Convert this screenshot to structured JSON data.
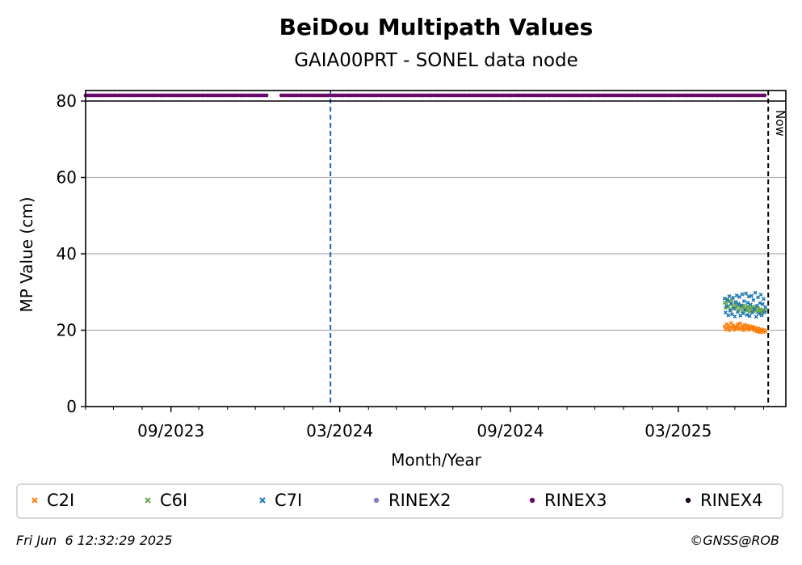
{
  "chart_data": {
    "type": "scatter",
    "title": "BeiDou Multipath Values",
    "subtitle": "GAIA00PRT - SONEL data node",
    "xlabel": "Month/Year",
    "ylabel": "MP Value (cm)",
    "xlim": [
      "2023-06-01",
      "2025-06-25"
    ],
    "ylim": [
      0,
      80
    ],
    "yticks": [
      0,
      20,
      40,
      60,
      80
    ],
    "xticks": [
      {
        "date": "2023-09-01",
        "label": "09/2023"
      },
      {
        "date": "2024-03-01",
        "label": "03/2024"
      },
      {
        "date": "2024-09-01",
        "label": "09/2024"
      },
      {
        "date": "2025-03-01",
        "label": "03/2025"
      }
    ],
    "grid": "horizontal",
    "now_line": {
      "date": "2025-06-06",
      "label": "Now"
    },
    "event_line": {
      "date": "2024-02-20",
      "color": "#1f5fbf"
    },
    "legend_position": "bottom",
    "series": [
      {
        "name": "C2I",
        "color": "#ff7f0e",
        "marker": "x",
        "points": [
          [
            "2025-04-20",
            21.0
          ],
          [
            "2025-04-21",
            20.2
          ],
          [
            "2025-04-22",
            21.6
          ],
          [
            "2025-04-23",
            20.5
          ],
          [
            "2025-04-24",
            21.2
          ],
          [
            "2025-04-25",
            20.0
          ],
          [
            "2025-04-26",
            20.8
          ],
          [
            "2025-04-27",
            21.9
          ],
          [
            "2025-04-28",
            20.6
          ],
          [
            "2025-04-29",
            21.3
          ],
          [
            "2025-04-30",
            20.1
          ],
          [
            "2025-05-01",
            21.0
          ],
          [
            "2025-05-02",
            20.4
          ],
          [
            "2025-05-03",
            20.9
          ],
          [
            "2025-05-04",
            21.5
          ],
          [
            "2025-05-05",
            20.3
          ],
          [
            "2025-05-06",
            20.7
          ],
          [
            "2025-05-07",
            21.8
          ],
          [
            "2025-05-08",
            20.2
          ],
          [
            "2025-05-09",
            21.1
          ],
          [
            "2025-05-10",
            20.6
          ],
          [
            "2025-05-11",
            20.0
          ],
          [
            "2025-05-12",
            21.4
          ],
          [
            "2025-05-13",
            20.5
          ],
          [
            "2025-05-14",
            20.8
          ],
          [
            "2025-05-15",
            21.2
          ],
          [
            "2025-05-16",
            20.1
          ],
          [
            "2025-05-17",
            20.6
          ],
          [
            "2025-05-18",
            20.9
          ],
          [
            "2025-05-19",
            20.3
          ],
          [
            "2025-05-20",
            21.0
          ],
          [
            "2025-05-21",
            20.4
          ],
          [
            "2025-05-22",
            19.9
          ],
          [
            "2025-05-23",
            20.7
          ],
          [
            "2025-05-24",
            20.2
          ],
          [
            "2025-05-25",
            19.6
          ],
          [
            "2025-05-26",
            20.5
          ],
          [
            "2025-05-27",
            20.0
          ],
          [
            "2025-05-28",
            19.4
          ],
          [
            "2025-05-29",
            20.3
          ],
          [
            "2025-05-30",
            19.8
          ],
          [
            "2025-05-31",
            20.1
          ],
          [
            "2025-06-01",
            19.5
          ],
          [
            "2025-06-02",
            20.0
          ],
          [
            "2025-06-03",
            19.7
          ]
        ]
      },
      {
        "name": "C6I",
        "color": "#6aa84f",
        "marker": "x",
        "points": [
          [
            "2025-04-20",
            27.2
          ],
          [
            "2025-04-21",
            25.8
          ],
          [
            "2025-04-22",
            26.9
          ],
          [
            "2025-04-23",
            28.1
          ],
          [
            "2025-04-24",
            26.3
          ],
          [
            "2025-04-25",
            27.6
          ],
          [
            "2025-04-26",
            25.5
          ],
          [
            "2025-04-27",
            26.8
          ],
          [
            "2025-04-28",
            27.9
          ],
          [
            "2025-04-29",
            26.1
          ],
          [
            "2025-04-30",
            25.6
          ],
          [
            "2025-05-01",
            26.7
          ],
          [
            "2025-05-02",
            27.3
          ],
          [
            "2025-05-03",
            25.9
          ],
          [
            "2025-05-04",
            26.4
          ],
          [
            "2025-05-05",
            25.2
          ],
          [
            "2025-05-06",
            26.6
          ],
          [
            "2025-05-07",
            25.7
          ],
          [
            "2025-05-08",
            26.2
          ],
          [
            "2025-05-09",
            24.9
          ],
          [
            "2025-05-10",
            25.8
          ],
          [
            "2025-05-11",
            26.5
          ],
          [
            "2025-05-12",
            25.3
          ],
          [
            "2025-05-13",
            26.0
          ],
          [
            "2025-05-14",
            25.1
          ],
          [
            "2025-05-15",
            26.3
          ],
          [
            "2025-05-16",
            25.6
          ],
          [
            "2025-05-17",
            24.8
          ],
          [
            "2025-05-18",
            25.9
          ],
          [
            "2025-05-19",
            25.4
          ],
          [
            "2025-05-20",
            26.1
          ],
          [
            "2025-05-21",
            25.0
          ],
          [
            "2025-05-22",
            25.7
          ],
          [
            "2025-05-23",
            26.2
          ],
          [
            "2025-05-24",
            25.3
          ],
          [
            "2025-05-25",
            24.7
          ],
          [
            "2025-05-26",
            25.8
          ],
          [
            "2025-05-27",
            25.2
          ],
          [
            "2025-05-28",
            24.6
          ],
          [
            "2025-05-29",
            25.5
          ],
          [
            "2025-05-30",
            25.0
          ],
          [
            "2025-05-31",
            24.4
          ],
          [
            "2025-06-01",
            25.3
          ],
          [
            "2025-06-02",
            24.8
          ],
          [
            "2025-06-03",
            25.1
          ]
        ]
      },
      {
        "name": "C7I",
        "color": "#1f77b4",
        "marker": "x",
        "points": [
          [
            "2025-04-20",
            28.3
          ],
          [
            "2025-04-21",
            24.6
          ],
          [
            "2025-04-22",
            26.2
          ],
          [
            "2025-04-23",
            27.8
          ],
          [
            "2025-04-24",
            23.9
          ],
          [
            "2025-04-25",
            28.9
          ],
          [
            "2025-04-26",
            25.1
          ],
          [
            "2025-04-27",
            27.0
          ],
          [
            "2025-04-28",
            24.2
          ],
          [
            "2025-04-29",
            28.5
          ],
          [
            "2025-04-30",
            25.7
          ],
          [
            "2025-05-01",
            23.6
          ],
          [
            "2025-05-02",
            27.4
          ],
          [
            "2025-05-03",
            29.1
          ],
          [
            "2025-05-04",
            24.8
          ],
          [
            "2025-05-05",
            26.9
          ],
          [
            "2025-05-06",
            28.7
          ],
          [
            "2025-05-07",
            23.8
          ],
          [
            "2025-05-08",
            26.5
          ],
          [
            "2025-05-09",
            29.4
          ],
          [
            "2025-05-10",
            24.4
          ],
          [
            "2025-05-11",
            27.6
          ],
          [
            "2025-05-12",
            25.3
          ],
          [
            "2025-05-13",
            29.6
          ],
          [
            "2025-05-14",
            24.0
          ],
          [
            "2025-05-15",
            27.2
          ],
          [
            "2025-05-16",
            28.8
          ],
          [
            "2025-05-17",
            23.7
          ],
          [
            "2025-05-18",
            26.7
          ],
          [
            "2025-05-19",
            29.0
          ],
          [
            "2025-05-20",
            24.6
          ],
          [
            "2025-05-21",
            27.9
          ],
          [
            "2025-05-22",
            25.5
          ],
          [
            "2025-05-23",
            29.8
          ],
          [
            "2025-05-24",
            23.5
          ],
          [
            "2025-05-25",
            26.4
          ],
          [
            "2025-05-26",
            28.6
          ],
          [
            "2025-05-27",
            24.3
          ],
          [
            "2025-05-28",
            27.1
          ],
          [
            "2025-05-29",
            29.3
          ],
          [
            "2025-05-30",
            23.9
          ],
          [
            "2025-05-31",
            26.8
          ],
          [
            "2025-06-01",
            28.2
          ],
          [
            "2025-06-02",
            24.7
          ],
          [
            "2025-06-03",
            26.0
          ]
        ]
      },
      {
        "name": "RINEX2",
        "color": "#8080c0",
        "marker": "o",
        "points": []
      },
      {
        "name": "RINEX3",
        "color": "#6a0a6a",
        "marker": "o",
        "availability": [
          [
            "2023-06-01",
            "2023-12-15"
          ],
          [
            "2023-12-29",
            "2025-06-03"
          ]
        ]
      },
      {
        "name": "RINEX4",
        "color": "#1a0020",
        "marker": "o",
        "points": []
      }
    ]
  },
  "footer": {
    "timestamp": "Fri Jun  6 12:32:29 2025",
    "credit": "©GNSS@ROB"
  }
}
